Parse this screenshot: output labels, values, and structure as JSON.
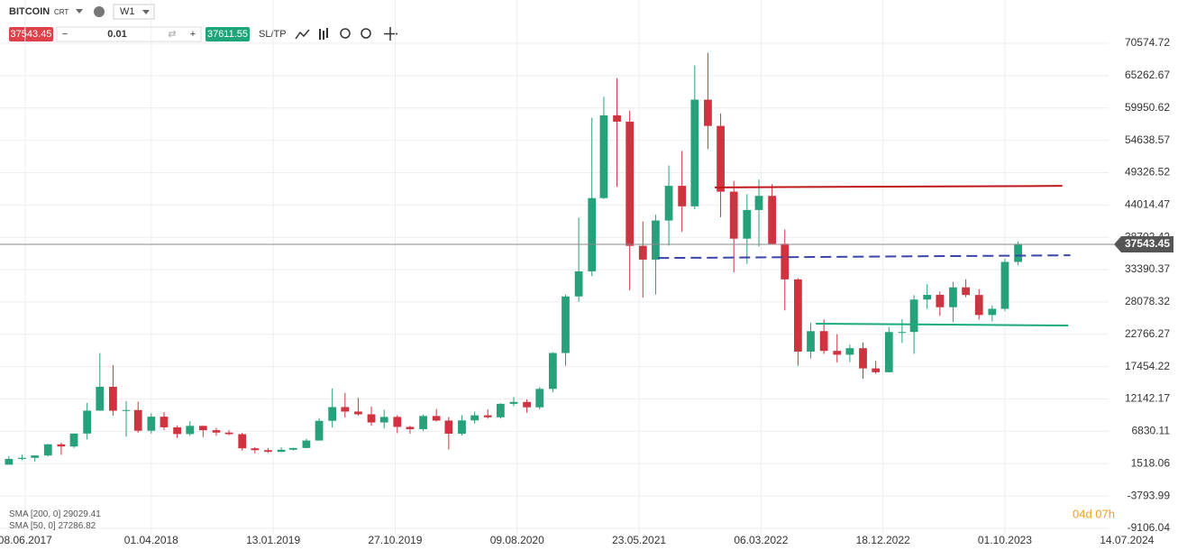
{
  "toolbar": {
    "symbol": "BITCOIN",
    "symbol_tag": "CRT",
    "timeframe": "W1",
    "lot": "0.01",
    "ask": "37611.55",
    "sltp": "SL/TP"
  },
  "chart_data": {
    "type": "candlestick",
    "x": [
      "2017-05-01",
      "2017-06-01",
      "2017-07-01",
      "2017-08-01",
      "2017-09-01",
      "2017-10-01",
      "2017-11-01",
      "2017-12-01",
      "2018-01-01",
      "2018-02-01",
      "2018-03-01",
      "2018-04-01",
      "2018-05-01",
      "2018-06-01",
      "2018-07-01",
      "2018-08-01",
      "2018-09-01",
      "2018-10-01",
      "2018-11-01",
      "2018-12-01",
      "2019-01-01",
      "2019-02-01",
      "2019-03-01",
      "2019-04-01",
      "2019-05-01",
      "2019-06-01",
      "2019-07-01",
      "2019-08-01",
      "2019-09-01",
      "2019-10-01",
      "2019-11-01",
      "2019-12-01",
      "2020-01-01",
      "2020-02-01",
      "2020-03-01",
      "2020-04-01",
      "2020-05-01",
      "2020-06-01",
      "2020-07-01",
      "2020-08-01",
      "2020-09-01",
      "2020-10-01",
      "2020-11-01",
      "2020-12-01",
      "2021-01-01",
      "2021-02-01",
      "2021-03-01",
      "2021-04-01",
      "2021-05-01",
      "2021-06-01",
      "2021-07-01",
      "2021-08-01",
      "2021-09-01",
      "2021-10-01",
      "2021-11-01",
      "2021-12-01",
      "2022-01-01",
      "2022-02-01",
      "2022-03-01",
      "2022-04-01",
      "2022-05-01",
      "2022-06-01",
      "2022-07-01",
      "2022-08-01",
      "2022-09-01",
      "2022-10-01",
      "2022-11-01",
      "2022-12-01",
      "2023-01-01",
      "2023-02-01",
      "2023-03-01",
      "2023-04-01",
      "2023-05-01",
      "2023-06-01",
      "2023-07-01",
      "2023-08-01",
      "2023-09-01",
      "2023-10-01",
      "2023-11-01"
    ],
    "open": [
      1350,
      2300,
      2480,
      2870,
      4700,
      4340,
      6470,
      10230,
      14150,
      10220,
      10330,
      6930,
      9240,
      7490,
      6390,
      7730,
      7020,
      6630,
      6370,
      4040,
      3740,
      3460,
      3810,
      4100,
      5320,
      8560,
      10820,
      10080,
      9630,
      8290,
      9200,
      7560,
      7190,
      9350,
      8600,
      6440,
      8630,
      9460,
      9140,
      11350,
      11660,
      10780,
      13800,
      19700,
      28990,
      33110,
      45140,
      58740,
      57700,
      37300,
      35040,
      41460,
      47160,
      43790,
      61310,
      57000,
      46200,
      38480,
      43190,
      45510,
      37640,
      31790,
      19930,
      23290,
      20050,
      19420,
      20490,
      17170,
      16540,
      23140,
      23150,
      28480,
      29250,
      27220,
      30480,
      29230,
      25940,
      26960,
      34660
    ],
    "high": [
      2760,
      2980,
      2900,
      4750,
      4980,
      6470,
      11500,
      19700,
      17700,
      11800,
      11700,
      9800,
      9990,
      7780,
      8500,
      7760,
      7410,
      7010,
      6610,
      4240,
      4080,
      4210,
      4110,
      5620,
      9000,
      13880,
      13150,
      12330,
      10900,
      10400,
      9500,
      7750,
      9590,
      10500,
      9200,
      9470,
      10070,
      10430,
      11450,
      12480,
      12080,
      14100,
      19850,
      29300,
      41950,
      58350,
      61780,
      64850,
      59500,
      41300,
      42400,
      50500,
      52900,
      66930,
      69000,
      59040,
      47990,
      45800,
      48190,
      47440,
      40000,
      31960,
      24670,
      25200,
      22800,
      21080,
      21450,
      18390,
      23950,
      25250,
      29200,
      31000,
      29820,
      31390,
      31800,
      30200,
      27500,
      35200,
      38000
    ],
    "low": [
      1350,
      2100,
      1840,
      2700,
      2970,
      4110,
      5500,
      10200,
      9400,
      5950,
      6600,
      6450,
      7030,
      5750,
      6080,
      5880,
      6120,
      6200,
      3650,
      3200,
      3350,
      3390,
      3690,
      4070,
      5320,
      7450,
      9110,
      9400,
      7740,
      7300,
      6530,
      6430,
      6870,
      8450,
      3850,
      6150,
      8110,
      8900,
      8920,
      10980,
      9880,
      10440,
      13250,
      17600,
      28130,
      32300,
      45000,
      47000,
      30000,
      28800,
      29300,
      37330,
      39600,
      43300,
      53250,
      42000,
      32950,
      34320,
      37160,
      37700,
      26700,
      17600,
      18780,
      19540,
      18150,
      18200,
      15480,
      16260,
      16500,
      21350,
      19550,
      26940,
      25800,
      24800,
      28860,
      25170,
      24900,
      26560,
      34100
    ],
    "close": [
      2300,
      2480,
      2870,
      4700,
      4340,
      6470,
      10230,
      14150,
      10220,
      10330,
      6930,
      9240,
      7490,
      6390,
      7730,
      7020,
      6630,
      6370,
      4040,
      3740,
      3460,
      3810,
      4100,
      5320,
      8560,
      10820,
      10080,
      9630,
      8290,
      9200,
      7560,
      7190,
      9350,
      8600,
      6440,
      8630,
      9460,
      9140,
      11350,
      11660,
      10780,
      13800,
      19700,
      28990,
      33110,
      45140,
      58740,
      57700,
      37300,
      35040,
      41460,
      47160,
      43790,
      61310,
      57000,
      46200,
      38480,
      43190,
      45510,
      37640,
      31790,
      19930,
      23290,
      20050,
      19420,
      20490,
      17170,
      16540,
      23140,
      23150,
      28480,
      29250,
      27220,
      30480,
      29230,
      25940,
      26960,
      34660,
      37543.45
    ],
    "up_color": "#26a17b",
    "down_color": "#cf3340",
    "xlim": [
      "2017-04-10",
      "2024-06-01"
    ],
    "xticks": [
      {
        "value": "2017-06-08",
        "label": "08.06.2017"
      },
      {
        "value": "2018-04-01",
        "label": "01.04.2018"
      },
      {
        "value": "2019-01-13",
        "label": "13.01.2019"
      },
      {
        "value": "2019-10-27",
        "label": "27.10.2019"
      },
      {
        "value": "2020-08-09",
        "label": "09.08.2020"
      },
      {
        "value": "2021-05-23",
        "label": "23.05.2021"
      },
      {
        "value": "2022-03-06",
        "label": "06.03.2022"
      },
      {
        "value": "2022-12-18",
        "label": "18.12.2022"
      },
      {
        "value": "2023-10-01",
        "label": "01.10.2023"
      },
      {
        "value": "2024-07-14",
        "label": "14.07.2024"
      }
    ],
    "ylim": [
      -9995,
      77684
    ],
    "yticks": [
      70574.72,
      65262.67,
      59950.62,
      54638.57,
      49326.52,
      44014.47,
      38702.42,
      33390.37,
      28078.32,
      22766.27,
      17454.22,
      12142.17,
      6830.11,
      1518.06,
      -3793.99,
      -9106.04
    ],
    "grid": true,
    "current_price": 37543.45,
    "levels": [
      {
        "color": "#c0161c",
        "style": "solid",
        "x": [
          "2021-11-17",
          "2024-02-13"
        ],
        "y": [
          46900,
          47150
        ]
      },
      {
        "color": "#3a45a8",
        "style": "dashed",
        "x": [
          "2021-07-07",
          "2024-03-03"
        ],
        "y": [
          35300,
          35750
        ]
      },
      {
        "color": "#1aaa7e",
        "style": "solid",
        "x": [
          "2022-07-13",
          "2024-02-27"
        ],
        "y": [
          24510,
          24220
        ]
      }
    ],
    "indicators": [
      {
        "label": "SMA [200, 0]",
        "value": 29029.41
      },
      {
        "label": "SMA [50, 0]",
        "value": 27286.82
      }
    ],
    "timer": "04d 07h"
  }
}
